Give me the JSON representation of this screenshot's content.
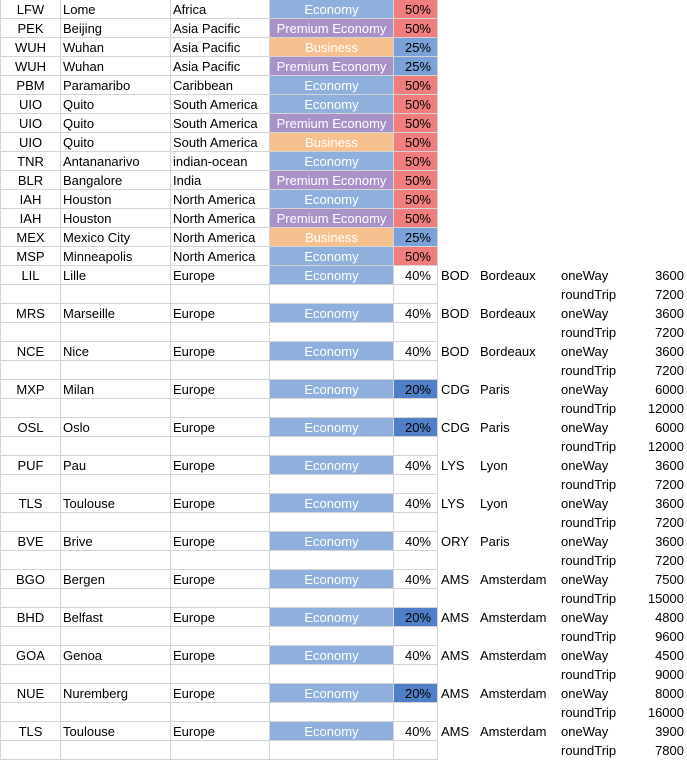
{
  "colors": {
    "economy": "#8fb0dc",
    "premium_economy": "#a992c8",
    "business": "#f7c08f",
    "pct_50": "#f07e7e",
    "pct_25": "#7aa2d8",
    "pct_20": "#4f7fc6"
  },
  "top_rows": [
    {
      "code": "LFW",
      "city": "Lome",
      "region": "Africa",
      "class": "Economy",
      "pct": "50%"
    },
    {
      "code": "PEK",
      "city": "Beijing",
      "region": "Asia Pacific",
      "class": "Premium Economy",
      "pct": "50%"
    },
    {
      "code": "WUH",
      "city": "Wuhan",
      "region": "Asia Pacific",
      "class": "Business",
      "pct": "25%"
    },
    {
      "code": "WUH",
      "city": "Wuhan",
      "region": "Asia Pacific",
      "class": "Premium Economy",
      "pct": "25%"
    },
    {
      "code": "PBM",
      "city": "Paramaribo",
      "region": "Caribbean",
      "class": "Economy",
      "pct": "50%"
    },
    {
      "code": "UIO",
      "city": "Quito",
      "region": "South America",
      "class": "Economy",
      "pct": "50%"
    },
    {
      "code": "UIO",
      "city": "Quito",
      "region": "South America",
      "class": "Premium Economy",
      "pct": "50%"
    },
    {
      "code": "UIO",
      "city": "Quito",
      "region": "South America",
      "class": "Business",
      "pct": "50%"
    },
    {
      "code": "TNR",
      "city": "Antananarivo",
      "region": "indian-ocean",
      "class": "Economy",
      "pct": "50%"
    },
    {
      "code": "BLR",
      "city": "Bangalore",
      "region": "India",
      "class": "Premium Economy",
      "pct": "50%"
    },
    {
      "code": "IAH",
      "city": "Houston",
      "region": "North America",
      "class": "Economy",
      "pct": "50%"
    },
    {
      "code": "IAH",
      "city": "Houston",
      "region": "North America",
      "class": "Premium Economy",
      "pct": "50%"
    },
    {
      "code": "MEX",
      "city": "Mexico City",
      "region": "North America",
      "class": "Business",
      "pct": "25%"
    },
    {
      "code": "MSP",
      "city": "Minneapolis",
      "region": "North America",
      "class": "Economy",
      "pct": "50%"
    }
  ],
  "europe_rows": [
    {
      "code": "LIL",
      "city": "Lille",
      "region": "Europe",
      "class": "Economy",
      "pct": "40%",
      "dest_code": "BOD",
      "dest_city": "Bordeaux",
      "one_way_label": "oneWay",
      "one_way": "3600",
      "round_trip_label": "roundTrip",
      "round_trip": "7200"
    },
    {
      "code": "MRS",
      "city": "Marseille",
      "region": "Europe",
      "class": "Economy",
      "pct": "40%",
      "dest_code": "BOD",
      "dest_city": "Bordeaux",
      "one_way_label": "oneWay",
      "one_way": "3600",
      "round_trip_label": "roundTrip",
      "round_trip": "7200"
    },
    {
      "code": "NCE",
      "city": "Nice",
      "region": "Europe",
      "class": "Economy",
      "pct": "40%",
      "dest_code": "BOD",
      "dest_city": "Bordeaux",
      "one_way_label": "oneWay",
      "one_way": "3600",
      "round_trip_label": "roundTrip",
      "round_trip": "7200"
    },
    {
      "code": "MXP",
      "city": "Milan",
      "region": "Europe",
      "class": "Economy",
      "pct": "20%",
      "dest_code": "CDG",
      "dest_city": "Paris",
      "one_way_label": "oneWay",
      "one_way": "6000",
      "round_trip_label": "roundTrip",
      "round_trip": "12000"
    },
    {
      "code": "OSL",
      "city": "Oslo",
      "region": "Europe",
      "class": "Economy",
      "pct": "20%",
      "dest_code": "CDG",
      "dest_city": "Paris",
      "one_way_label": "oneWay",
      "one_way": "6000",
      "round_trip_label": "roundTrip",
      "round_trip": "12000"
    },
    {
      "code": "PUF",
      "city": "Pau",
      "region": "Europe",
      "class": "Economy",
      "pct": "40%",
      "dest_code": "LYS",
      "dest_city": "Lyon",
      "one_way_label": "oneWay",
      "one_way": "3600",
      "round_trip_label": "roundTrip",
      "round_trip": "7200"
    },
    {
      "code": "TLS",
      "city": "Toulouse",
      "region": "Europe",
      "class": "Economy",
      "pct": "40%",
      "dest_code": "LYS",
      "dest_city": "Lyon",
      "one_way_label": "oneWay",
      "one_way": "3600",
      "round_trip_label": "roundTrip",
      "round_trip": "7200"
    },
    {
      "code": "BVE",
      "city": "Brive",
      "region": "Europe",
      "class": "Economy",
      "pct": "40%",
      "dest_code": "ORY",
      "dest_city": "Paris",
      "one_way_label": "oneWay",
      "one_way": "3600",
      "round_trip_label": "roundTrip",
      "round_trip": "7200"
    },
    {
      "code": "BGO",
      "city": "Bergen",
      "region": "Europe",
      "class": "Economy",
      "pct": "40%",
      "dest_code": "AMS",
      "dest_city": "Amsterdam",
      "one_way_label": "oneWay",
      "one_way": "7500",
      "round_trip_label": "roundTrip",
      "round_trip": "15000"
    },
    {
      "code": "BHD",
      "city": "Belfast",
      "region": "Europe",
      "class": "Economy",
      "pct": "20%",
      "dest_code": "AMS",
      "dest_city": "Amsterdam",
      "one_way_label": "oneWay",
      "one_way": "4800",
      "round_trip_label": "roundTrip",
      "round_trip": "9600"
    },
    {
      "code": "GOA",
      "city": "Genoa",
      "region": "Europe",
      "class": "Economy",
      "pct": "40%",
      "dest_code": "AMS",
      "dest_city": "Amsterdam",
      "one_way_label": "oneWay",
      "one_way": "4500",
      "round_trip_label": "roundTrip",
      "round_trip": "9000"
    },
    {
      "code": "NUE",
      "city": "Nuremberg",
      "region": "Europe",
      "class": "Economy",
      "pct": "20%",
      "dest_code": "AMS",
      "dest_city": "Amsterdam",
      "one_way_label": "oneWay",
      "one_way": "8000",
      "round_trip_label": "roundTrip",
      "round_trip": "16000"
    },
    {
      "code": "TLS",
      "city": "Toulouse",
      "region": "Europe",
      "class": "Economy",
      "pct": "40%",
      "dest_code": "AMS",
      "dest_city": "Amsterdam",
      "one_way_label": "oneWay",
      "one_way": "3900",
      "round_trip_label": "roundTrip",
      "round_trip": "7800"
    }
  ]
}
